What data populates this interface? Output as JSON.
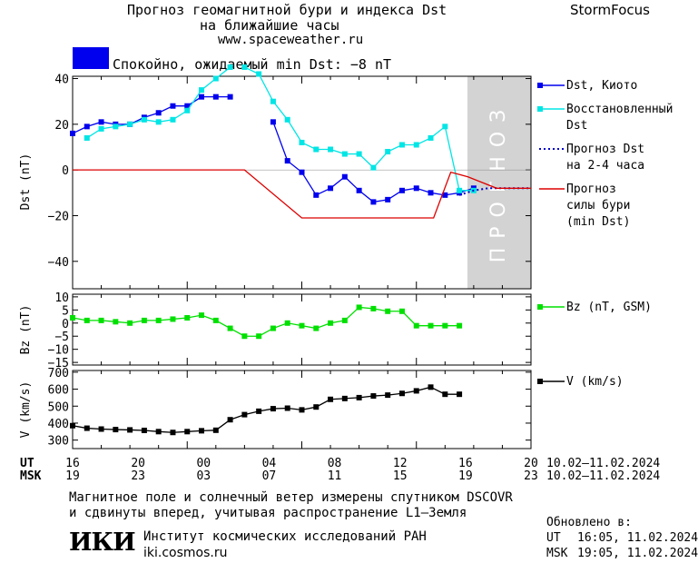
{
  "header": {
    "title_line1": "Прогноз геомагнитной бури и индекса Dst",
    "title_line2": "на ближайшие часы",
    "url": "www.spaceweather.ru",
    "brand": "StormFocus",
    "status_text": "Спокойно, ожидаемый min Dst: −8 nT",
    "status_color": "#0000ee"
  },
  "chart_data": [
    {
      "type": "line",
      "ylabel": "Dst (nT)",
      "ylim": [
        -52,
        41
      ],
      "yticks": [
        -40,
        -20,
        0,
        20,
        40
      ],
      "shaded_label": "ПРОГНОЗ",
      "series": [
        {
          "name": "Dst, Киото",
          "color": "#0000ee",
          "marker": "square",
          "x": [
            16,
            16.5,
            17,
            17.5,
            18,
            18.5,
            19,
            19.5,
            20,
            20.5,
            21,
            21.5
          ],
          "y": [
            16,
            19,
            21,
            20,
            20,
            23,
            25,
            28,
            28,
            32,
            32,
            32
          ],
          "x2": [
            23,
            23.5,
            24,
            24.5,
            25,
            25.5,
            26,
            26.5,
            27,
            27.5,
            28,
            28.5,
            29,
            29.5,
            30
          ],
          "y2": [
            21,
            4,
            -1,
            -11,
            -8,
            -3,
            -9,
            -14,
            -13,
            -9,
            -8,
            -10,
            -11,
            -10,
            -8
          ]
        },
        {
          "name": "Восстановленный Dst",
          "color": "#00e5e5",
          "marker": "square",
          "x": [
            16.5,
            17,
            17.5,
            18,
            18.5,
            19,
            19.5,
            20,
            20.5,
            21,
            21.5
          ],
          "y": [
            14,
            18,
            19,
            20,
            22,
            21,
            22,
            26,
            35,
            40,
            45
          ],
          "x2": [
            22,
            22.5,
            23,
            23.5,
            24,
            24.5,
            25,
            25.5,
            26,
            26.5,
            27,
            27.5,
            28,
            28.5,
            29,
            29.5,
            30
          ],
          "y2": [
            45,
            42,
            30,
            22,
            12,
            9,
            9,
            7,
            7,
            1,
            8,
            11,
            11,
            14,
            19,
            -9,
            -9
          ]
        },
        {
          "name": "Прогноз Dst на 2-4 часа",
          "color": "#0000cc",
          "style": "dotted",
          "x": [
            29.5,
            30,
            30.5,
            32
          ],
          "y": [
            -11,
            -9,
            -8,
            -8
          ]
        },
        {
          "name": "Прогноз силы бури (min Dst)",
          "color": "#dd0000",
          "x": [
            16,
            22,
            24,
            28.6,
            29.2,
            29.8,
            30.8,
            32
          ],
          "y": [
            0,
            0,
            -21,
            -21,
            -1,
            -3,
            -8,
            -8
          ]
        }
      ]
    },
    {
      "type": "line",
      "ylabel": "Bz (nT)",
      "ylim": [
        -16,
        11
      ],
      "yticks": [
        10,
        5,
        0,
        -5,
        -10,
        -15
      ],
      "series": [
        {
          "name": "Bz (nT, GSM)",
          "color": "#00e000",
          "marker": "square",
          "x": [
            16,
            16.5,
            17,
            17.5,
            18,
            18.5,
            19,
            19.5,
            20,
            20.5,
            21,
            21.5,
            22,
            22.5,
            23,
            23.5,
            24,
            24.5,
            25,
            25.5,
            26,
            26.5,
            27,
            27.5,
            28,
            28.5,
            29,
            29.5
          ],
          "y": [
            2,
            1,
            1,
            0.5,
            0,
            1,
            1,
            1.5,
            2,
            3,
            1,
            -2,
            -5,
            -5,
            -2,
            0,
            -1,
            -2,
            0,
            1,
            6,
            5.5,
            4.5,
            4.5,
            -1,
            -1,
            -1,
            -1
          ]
        }
      ]
    },
    {
      "type": "line",
      "ylabel": "V (km/s)",
      "ylim": [
        250,
        710
      ],
      "yticks": [
        300,
        400,
        500,
        600,
        700
      ],
      "series": [
        {
          "name": "V (km/s)",
          "color": "#000000",
          "marker": "square",
          "x": [
            16,
            16.5,
            17,
            17.5,
            18,
            18.5,
            19,
            19.5,
            20,
            20.5,
            21,
            21.5,
            22,
            22.5,
            23,
            23.5,
            24,
            24.5,
            25,
            25.5,
            26,
            26.5,
            27,
            27.5,
            28,
            28.5,
            29,
            29.5
          ],
          "y": [
            385,
            370,
            365,
            362,
            360,
            357,
            350,
            345,
            350,
            355,
            358,
            420,
            450,
            470,
            485,
            488,
            478,
            495,
            540,
            545,
            550,
            560,
            565,
            575,
            590,
            612,
            570,
            570
          ]
        }
      ]
    }
  ],
  "time_axis": {
    "ut_label": "UT",
    "msk_label": "MSK",
    "ut_ticks": [
      "16",
      "20",
      "00",
      "04",
      "08",
      "12",
      "16",
      "20"
    ],
    "msk_ticks": [
      "19",
      "23",
      "03",
      "07",
      "11",
      "15",
      "19",
      "23"
    ],
    "date_range_ut": "10.02–11.02.2024",
    "date_range_msk": "10.02–11.02.2024"
  },
  "legend": {
    "dst_kyoto": "Dst, Киото",
    "restored_1": "Восстановленный",
    "restored_2": "Dst",
    "forecast_1": "Прогноз Dst",
    "forecast_2": "на 2-4 часа",
    "storm_1": "Прогноз",
    "storm_2": "силы бури",
    "storm_3": "(min Dst)",
    "bz": "Bz (nT, GSM)",
    "v": "V (km/s)"
  },
  "footer": {
    "note_line1": "Магнитное поле и солнечный ветер измерены спутником DSCOVR",
    "note_line2": "и сдвинуты вперед, учитывая распространение L1–Земля",
    "institute": "Институт космических исследований РАН",
    "institute_url": "iki.cosmos.ru",
    "logo_text": "ИКИ",
    "updated_label": "Обновлено в:",
    "updated_ut_label": "UT",
    "updated_ut": "16:05, 11.02.2024",
    "updated_msk_label": "MSK",
    "updated_msk": "19:05, 11.02.2024"
  }
}
